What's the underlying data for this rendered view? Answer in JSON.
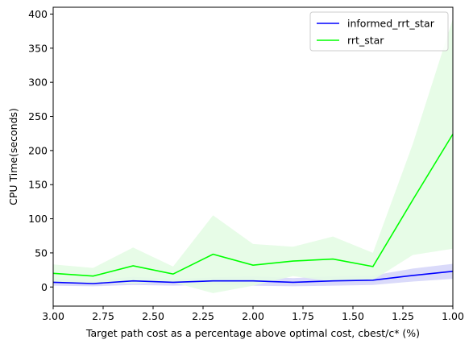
{
  "chart_data": {
    "type": "line",
    "xlabel": "Target path cost as a percentage above optimal cost, cbest/c* (%)",
    "ylabel": "CPU Time(seconds)",
    "xlim": [
      3.0,
      1.0
    ],
    "ylim": [
      -28,
      410
    ],
    "x_reversed": true,
    "grid": false,
    "legend_position": "top-right",
    "xticks": [
      3.0,
      2.75,
      2.5,
      2.25,
      2.0,
      1.75,
      1.5,
      1.25,
      1.0
    ],
    "xtick_labels": [
      "3.00",
      "2.75",
      "2.50",
      "2.25",
      "2.00",
      "1.75",
      "1.50",
      "1.25",
      "1.00"
    ],
    "yticks": [
      0,
      50,
      100,
      150,
      200,
      250,
      300,
      350,
      400
    ],
    "ytick_labels": [
      "0",
      "50",
      "100",
      "150",
      "200",
      "250",
      "300",
      "350",
      "400"
    ],
    "x": [
      3.0,
      2.8,
      2.6,
      2.4,
      2.2,
      2.0,
      1.8,
      1.6,
      1.4,
      1.2,
      1.0
    ],
    "series": [
      {
        "name": "informed_rrt_star",
        "color": "#0000ff",
        "band_color": "#d6d6fa",
        "values": [
          7,
          5,
          9,
          7,
          9,
          9,
          7,
          9,
          10,
          17,
          23
        ],
        "lower": [
          2,
          1,
          3,
          2,
          3,
          2,
          1,
          2,
          3,
          8,
          12
        ],
        "upper": [
          12,
          10,
          15,
          12,
          14,
          16,
          13,
          16,
          17,
          27,
          34
        ]
      },
      {
        "name": "rrt_star",
        "color": "#00ff00",
        "band_color": "#e4fce4",
        "values": [
          20,
          16,
          31,
          19,
          48,
          32,
          38,
          41,
          30,
          128,
          224
        ],
        "lower": [
          8,
          6,
          5,
          7,
          -9,
          2,
          16,
          8,
          10,
          47,
          56
        ],
        "upper": [
          33,
          28,
          58,
          30,
          105,
          63,
          59,
          74,
          50,
          210,
          393
        ]
      }
    ]
  }
}
